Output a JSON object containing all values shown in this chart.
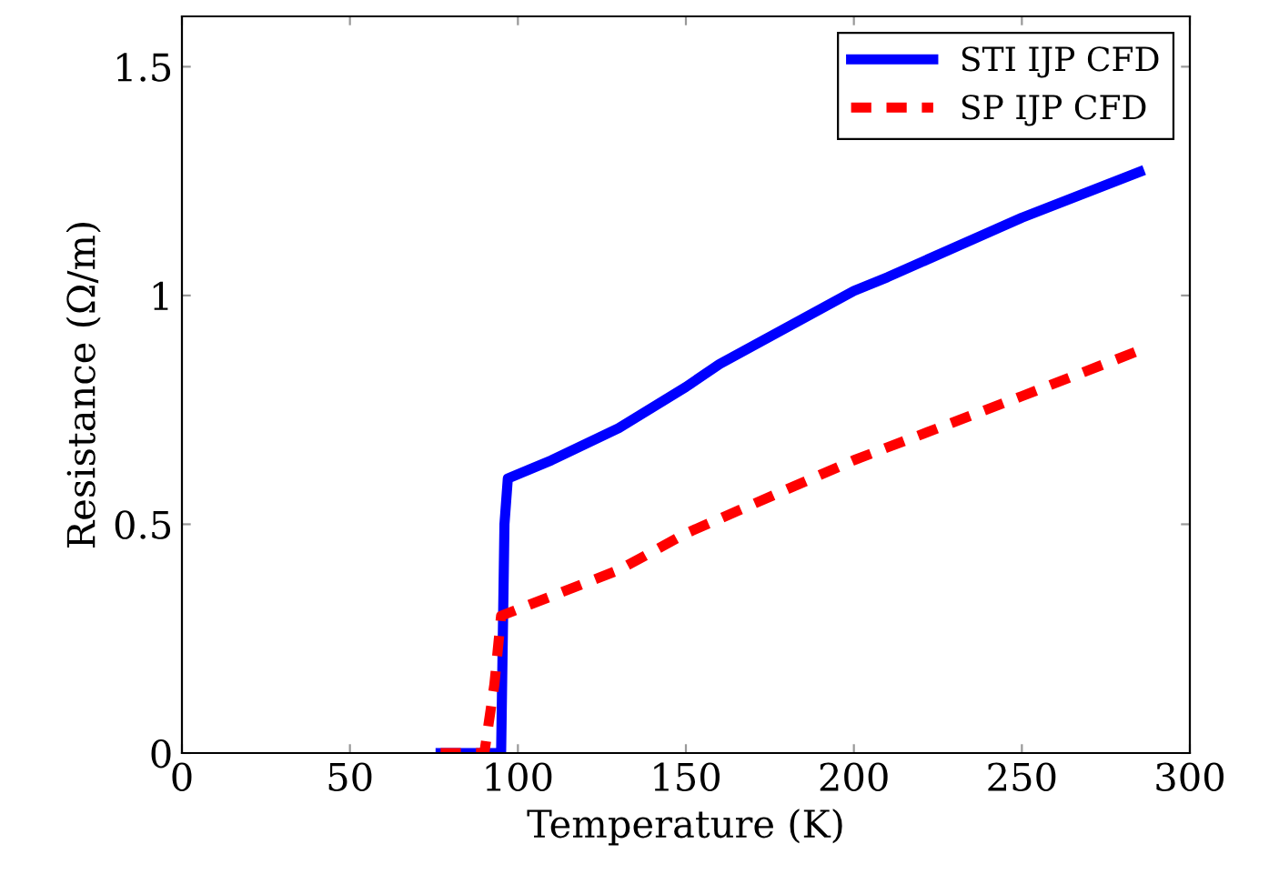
{
  "chart_data": {
    "type": "line",
    "xlabel": "Temperature (K)",
    "ylabel": "Resistance (Ω/m)",
    "xlim": [
      0,
      300
    ],
    "ylim": [
      0,
      1.61
    ],
    "xticks": [
      0,
      50,
      100,
      150,
      200,
      250,
      300
    ],
    "yticks": [
      0,
      0.5,
      1,
      1.5
    ],
    "grid": false,
    "legend": "top right",
    "marker": "none",
    "series": [
      {
        "name": "STI IJP CFD",
        "color": "#0000ff",
        "line_style": "solid",
        "x": [
          77,
          95,
          96,
          97,
          110,
          130,
          150,
          160,
          180,
          200,
          210,
          250,
          285
        ],
        "values": [
          0,
          0,
          0.5,
          0.6,
          0.64,
          0.71,
          0.8,
          0.85,
          0.93,
          1.01,
          1.04,
          1.17,
          1.27
        ]
      },
      {
        "name": "SP IJP CFD",
        "color": "#ff0000",
        "line_style": "dashed",
        "x": [
          77,
          90,
          93,
          95,
          130,
          150,
          200,
          250,
          285
        ],
        "values": [
          0,
          0,
          0.15,
          0.3,
          0.4,
          0.48,
          0.64,
          0.78,
          0.88
        ]
      }
    ]
  }
}
